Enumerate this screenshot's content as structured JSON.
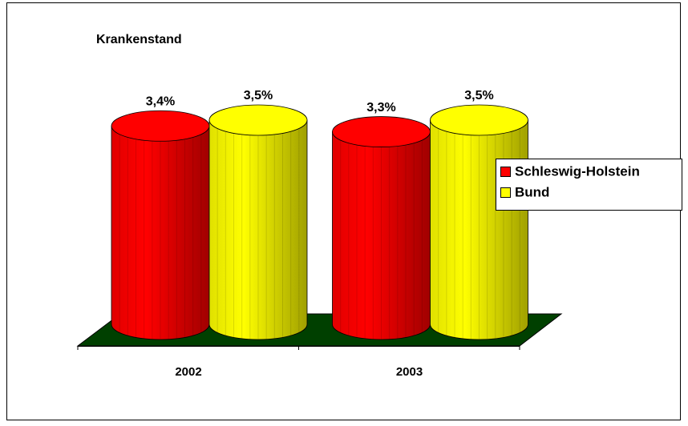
{
  "chart_data": {
    "type": "bar3d",
    "title": "Krankenstand",
    "categories": [
      "2002",
      "2003"
    ],
    "series": [
      {
        "name": "Schleswig-Holstein",
        "color": "#ff0000",
        "values": [
          3.4,
          3.3
        ],
        "value_labels": [
          "3,4%",
          "3,3%"
        ]
      },
      {
        "name": "Bund",
        "color": "#ffff00",
        "values": [
          3.5,
          3.5
        ],
        "value_labels": [
          "3,5%",
          "3,5%"
        ]
      }
    ],
    "floor_color": "#004000",
    "legend": "right"
  }
}
